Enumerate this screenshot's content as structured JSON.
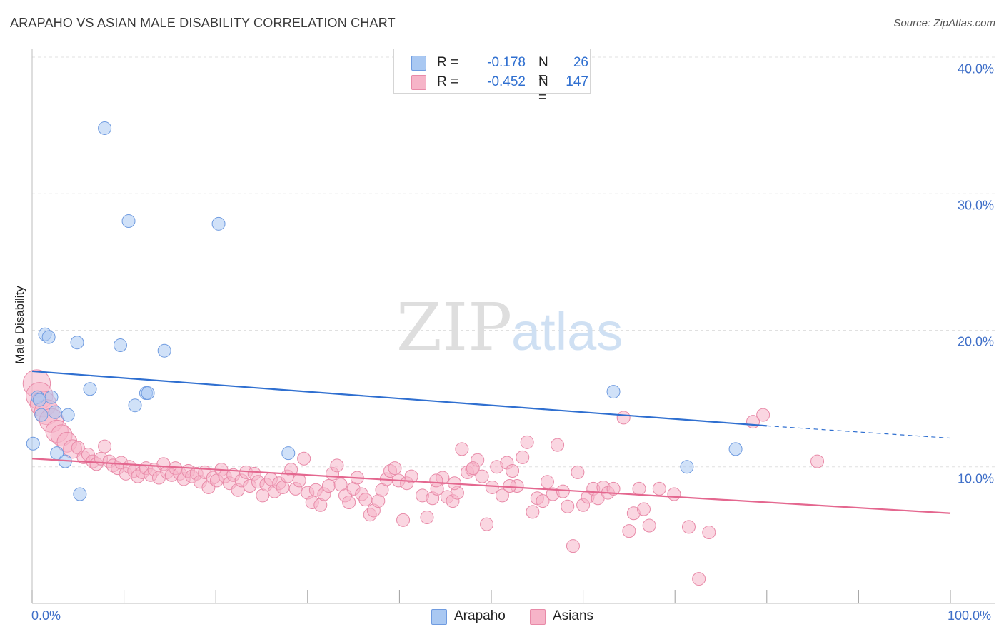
{
  "header": {
    "title": "ARAPAHO VS ASIAN MALE DISABILITY CORRELATION CHART",
    "source": "Source: ZipAtlas.com"
  },
  "watermark": {
    "zip": "ZIP",
    "atlas": "atlas"
  },
  "legend": {
    "rows": [
      {
        "r_label": "R =",
        "r_value": "-0.178",
        "n_label": "N =",
        "n_value": "26",
        "color": "#a9c8f2"
      },
      {
        "r_label": "R =",
        "r_value": "-0.452",
        "n_label": "N =",
        "n_value": "147",
        "color": "#f6b4c8"
      }
    ]
  },
  "bottom_legend": {
    "arapaho": "Arapaho",
    "asians": "Asians"
  },
  "colors": {
    "arapaho_fill": "#a9c8f2",
    "arapaho_stroke": "#6f9be0",
    "arapaho_line": "#2f6fd0",
    "asians_fill": "#f6b4c8",
    "asians_stroke": "#e88aa8",
    "asians_line": "#e4678f",
    "tick_text": "#3f6fc8",
    "grid": "#e0e0e0"
  },
  "chart_data": {
    "type": "scatter",
    "title": "ARAPAHO VS ASIAN MALE DISABILITY CORRELATION CHART",
    "xlabel": "",
    "ylabel": "Male Disability",
    "xlim": [
      0,
      100
    ],
    "ylim": [
      0,
      40
    ],
    "x_tick_labels": [
      "0.0%",
      "100.0%"
    ],
    "y_ticks": [
      10,
      20,
      30,
      40
    ],
    "y_tick_labels": [
      "10.0%",
      "20.0%",
      "30.0%",
      "40.0%"
    ],
    "grid": true,
    "legend_position": "top-center",
    "series": [
      {
        "name": "Arapaho",
        "r": -0.178,
        "n": 26,
        "trend": {
          "x": [
            0,
            80
          ],
          "y": [
            17.0,
            13.0
          ],
          "dashed_extension": {
            "x": [
              80,
              100
            ],
            "y": [
              13.0,
              12.1
            ]
          }
        },
        "points": [
          [
            7.9,
            34.8
          ],
          [
            10.5,
            28.0
          ],
          [
            20.3,
            27.8
          ],
          [
            1.4,
            19.7
          ],
          [
            1.8,
            19.5
          ],
          [
            4.9,
            19.1
          ],
          [
            9.6,
            18.9
          ],
          [
            14.4,
            18.5
          ],
          [
            6.3,
            15.7
          ],
          [
            12.4,
            15.4
          ],
          [
            12.6,
            15.4
          ],
          [
            0.6,
            15.1
          ],
          [
            2.1,
            15.1
          ],
          [
            11.2,
            14.5
          ],
          [
            1.0,
            13.8
          ],
          [
            2.5,
            14.0
          ],
          [
            3.9,
            13.8
          ],
          [
            0.1,
            11.7
          ],
          [
            2.7,
            11.0
          ],
          [
            3.6,
            10.4
          ],
          [
            27.9,
            11.0
          ],
          [
            5.2,
            8.0
          ],
          [
            63.3,
            15.5
          ],
          [
            71.3,
            10.0
          ],
          [
            76.6,
            11.3
          ],
          [
            0.8,
            14.9
          ]
        ]
      },
      {
        "name": "Asians",
        "r": -0.452,
        "n": 147,
        "trend": {
          "x": [
            0,
            100
          ],
          "y": [
            10.6,
            6.6
          ]
        },
        "points": [
          [
            0.5,
            16.1
          ],
          [
            0.8,
            15.2
          ],
          [
            1.2,
            14.6
          ],
          [
            1.6,
            14.0
          ],
          [
            2.1,
            13.4
          ],
          [
            2.7,
            12.6
          ],
          [
            3.2,
            12.3
          ],
          [
            3.8,
            11.8
          ],
          [
            4.4,
            11.3
          ],
          [
            5.0,
            11.4
          ],
          [
            5.6,
            10.7
          ],
          [
            6.1,
            10.9
          ],
          [
            6.6,
            10.4
          ],
          [
            7.0,
            10.2
          ],
          [
            7.5,
            10.6
          ],
          [
            7.9,
            11.5
          ],
          [
            8.4,
            10.4
          ],
          [
            8.8,
            10.1
          ],
          [
            9.3,
            9.9
          ],
          [
            9.7,
            10.3
          ],
          [
            10.2,
            9.5
          ],
          [
            10.6,
            10.0
          ],
          [
            11.1,
            9.7
          ],
          [
            11.5,
            9.3
          ],
          [
            12.0,
            9.6
          ],
          [
            12.4,
            9.9
          ],
          [
            12.9,
            9.4
          ],
          [
            13.3,
            9.8
          ],
          [
            13.8,
            9.2
          ],
          [
            14.3,
            10.2
          ],
          [
            14.7,
            9.6
          ],
          [
            15.2,
            9.4
          ],
          [
            15.6,
            9.9
          ],
          [
            16.1,
            9.5
          ],
          [
            16.5,
            9.1
          ],
          [
            17.0,
            9.7
          ],
          [
            17.4,
            9.3
          ],
          [
            17.9,
            9.5
          ],
          [
            18.3,
            8.9
          ],
          [
            18.8,
            9.6
          ],
          [
            19.2,
            8.5
          ],
          [
            19.7,
            9.2
          ],
          [
            20.1,
            9.0
          ],
          [
            20.6,
            9.8
          ],
          [
            21.0,
            9.3
          ],
          [
            21.5,
            8.8
          ],
          [
            21.9,
            9.4
          ],
          [
            22.4,
            8.3
          ],
          [
            22.8,
            9.0
          ],
          [
            23.3,
            9.6
          ],
          [
            23.7,
            8.6
          ],
          [
            24.2,
            9.5
          ],
          [
            24.6,
            8.9
          ],
          [
            25.1,
            7.9
          ],
          [
            25.5,
            8.7
          ],
          [
            26.0,
            9.1
          ],
          [
            26.4,
            8.2
          ],
          [
            26.9,
            8.8
          ],
          [
            27.3,
            8.5
          ],
          [
            27.8,
            9.3
          ],
          [
            28.2,
            9.8
          ],
          [
            28.7,
            8.4
          ],
          [
            29.1,
            9.0
          ],
          [
            29.6,
            10.6
          ],
          [
            30.0,
            8.1
          ],
          [
            30.5,
            7.4
          ],
          [
            30.9,
            8.3
          ],
          [
            31.4,
            7.2
          ],
          [
            31.8,
            8.0
          ],
          [
            32.3,
            8.6
          ],
          [
            32.7,
            9.5
          ],
          [
            33.2,
            10.1
          ],
          [
            33.6,
            8.7
          ],
          [
            34.1,
            7.9
          ],
          [
            34.5,
            7.4
          ],
          [
            35.0,
            8.4
          ],
          [
            35.4,
            9.2
          ],
          [
            35.9,
            8.0
          ],
          [
            36.3,
            7.6
          ],
          [
            36.8,
            6.5
          ],
          [
            37.2,
            6.8
          ],
          [
            37.7,
            7.5
          ],
          [
            38.1,
            8.3
          ],
          [
            38.6,
            9.1
          ],
          [
            39.0,
            9.7
          ],
          [
            39.5,
            9.9
          ],
          [
            39.9,
            9.0
          ],
          [
            40.4,
            6.1
          ],
          [
            40.8,
            8.8
          ],
          [
            41.3,
            9.3
          ],
          [
            42.5,
            7.9
          ],
          [
            43.0,
            6.3
          ],
          [
            43.6,
            7.7
          ],
          [
            44.1,
            8.4
          ],
          [
            44.7,
            9.2
          ],
          [
            45.2,
            7.8
          ],
          [
            45.8,
            7.5
          ],
          [
            46.3,
            8.1
          ],
          [
            46.8,
            11.3
          ],
          [
            47.4,
            9.6
          ],
          [
            47.9,
            9.8
          ],
          [
            48.5,
            10.5
          ],
          [
            49.0,
            9.3
          ],
          [
            49.5,
            5.8
          ],
          [
            50.1,
            8.5
          ],
          [
            50.6,
            10.0
          ],
          [
            51.2,
            7.9
          ],
          [
            51.7,
            10.3
          ],
          [
            52.3,
            9.7
          ],
          [
            52.8,
            8.6
          ],
          [
            53.4,
            10.7
          ],
          [
            53.9,
            11.8
          ],
          [
            54.5,
            6.7
          ],
          [
            55.0,
            7.7
          ],
          [
            55.6,
            7.5
          ],
          [
            56.1,
            8.9
          ],
          [
            56.7,
            8.0
          ],
          [
            57.2,
            11.6
          ],
          [
            57.8,
            8.2
          ],
          [
            58.3,
            7.1
          ],
          [
            58.9,
            4.2
          ],
          [
            59.4,
            9.6
          ],
          [
            60.0,
            7.2
          ],
          [
            60.5,
            7.8
          ],
          [
            61.1,
            8.4
          ],
          [
            61.6,
            7.7
          ],
          [
            62.2,
            8.5
          ],
          [
            62.7,
            8.1
          ],
          [
            63.3,
            8.4
          ],
          [
            64.4,
            13.6
          ],
          [
            65.0,
            5.3
          ],
          [
            65.5,
            6.6
          ],
          [
            66.1,
            8.4
          ],
          [
            66.6,
            6.9
          ],
          [
            67.2,
            5.7
          ],
          [
            68.3,
            8.4
          ],
          [
            69.9,
            8.0
          ],
          [
            71.5,
            5.6
          ],
          [
            72.6,
            1.8
          ],
          [
            73.7,
            5.2
          ],
          [
            78.5,
            13.3
          ],
          [
            79.6,
            13.8
          ],
          [
            85.5,
            10.4
          ],
          [
            52.0,
            8.6
          ],
          [
            48.0,
            9.9
          ],
          [
            46.0,
            8.8
          ],
          [
            44.0,
            9.0
          ]
        ]
      }
    ]
  }
}
